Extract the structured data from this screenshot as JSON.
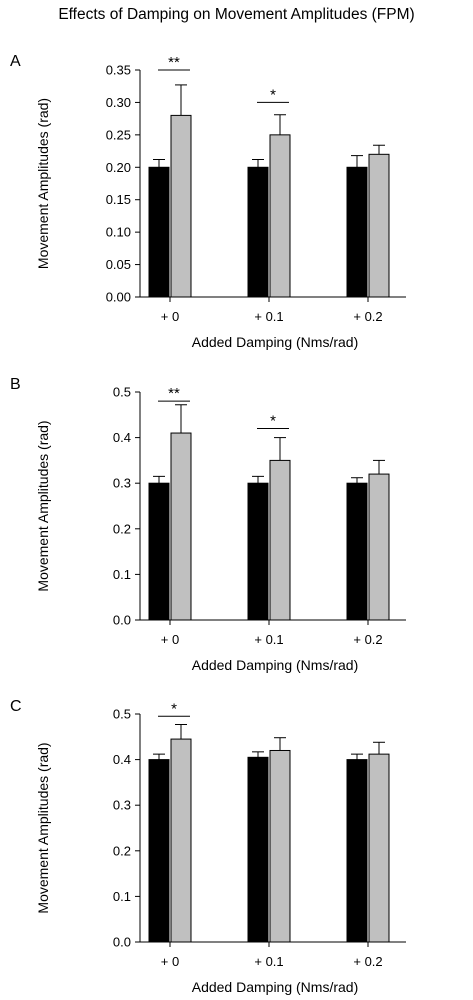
{
  "figure_title": "Effects of Damping on Movement Amplitudes (FPM)",
  "colors": {
    "series_1": "#000000",
    "series_2": "#c0c0c0",
    "axis": "#000000"
  },
  "chart_data": [
    {
      "type": "bar",
      "panel_label": "A",
      "categories": [
        "+ 0",
        "+ 0.1",
        "+ 0.2"
      ],
      "xlabel": "Added Damping (Nms/rad)",
      "ylabel": "Movement Amplitudes (rad)",
      "ylim": [
        0,
        0.35
      ],
      "yticks": [
        "0.00",
        "0.05",
        "0.10",
        "0.15",
        "0.20",
        "0.25",
        "0.30",
        "0.35"
      ],
      "series": [
        {
          "color": "#000000",
          "values": [
            0.2,
            0.2,
            0.2
          ],
          "errors": [
            0.012,
            0.012,
            0.018
          ]
        },
        {
          "color": "#c0c0c0",
          "values": [
            0.28,
            0.25,
            0.22
          ],
          "errors": [
            0.047,
            0.031,
            0.014
          ]
        }
      ],
      "significance": [
        {
          "category_index": 0,
          "label": "**",
          "y": 0.35
        },
        {
          "category_index": 1,
          "label": "*",
          "y": 0.3
        }
      ],
      "grid": false
    },
    {
      "type": "bar",
      "panel_label": "B",
      "categories": [
        "+ 0",
        "+ 0.1",
        "+ 0.2"
      ],
      "xlabel": "Added Damping (Nms/rad)",
      "ylabel": "Movement Amplitudes (rad)",
      "ylim": [
        0,
        0.5
      ],
      "yticks": [
        "0.0",
        "0.1",
        "0.2",
        "0.3",
        "0.4",
        "0.5"
      ],
      "series": [
        {
          "color": "#000000",
          "values": [
            0.3,
            0.3,
            0.3
          ],
          "errors": [
            0.015,
            0.015,
            0.012
          ]
        },
        {
          "color": "#c0c0c0",
          "values": [
            0.41,
            0.35,
            0.32
          ],
          "errors": [
            0.062,
            0.05,
            0.03
          ]
        }
      ],
      "significance": [
        {
          "category_index": 0,
          "label": "**",
          "y": 0.48
        },
        {
          "category_index": 1,
          "label": "*",
          "y": 0.42
        }
      ],
      "grid": false
    },
    {
      "type": "bar",
      "panel_label": "C",
      "categories": [
        "+ 0",
        "+ 0.1",
        "+ 0.2"
      ],
      "xlabel": "Added Damping (Nms/rad)",
      "ylabel": "Movement Amplitudes (rad)",
      "ylim": [
        0,
        0.5
      ],
      "yticks": [
        "0.0",
        "0.1",
        "0.2",
        "0.3",
        "0.4",
        "0.5"
      ],
      "series": [
        {
          "color": "#000000",
          "values": [
            0.4,
            0.405,
            0.4
          ],
          "errors": [
            0.012,
            0.012,
            0.012
          ]
        },
        {
          "color": "#c0c0c0",
          "values": [
            0.445,
            0.42,
            0.412
          ],
          "errors": [
            0.032,
            0.028,
            0.026
          ]
        }
      ],
      "significance": [
        {
          "category_index": 0,
          "label": "*",
          "y": 0.495
        }
      ],
      "grid": false
    }
  ]
}
